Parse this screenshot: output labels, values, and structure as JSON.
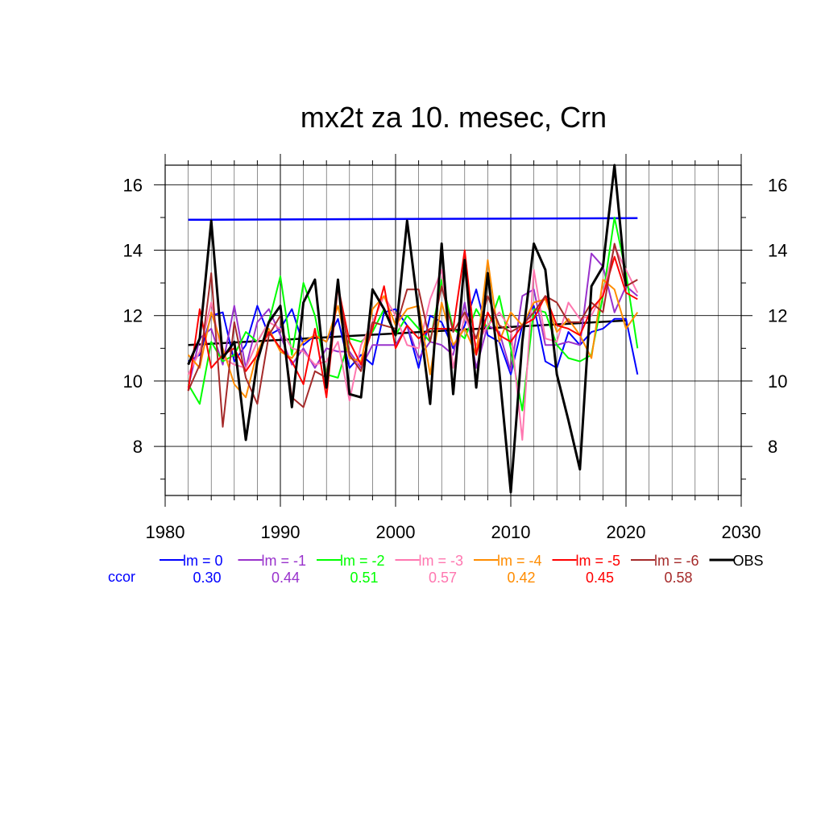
{
  "chart_data": {
    "type": "line",
    "title": "mx2t za 10. mesec, Crn",
    "xlabel": "",
    "ylabel": "",
    "xlim": [
      1980,
      2030
    ],
    "ylim": [
      6.5,
      16.6
    ],
    "x_ticks": [
      1980,
      1990,
      2000,
      2010,
      2020,
      2030
    ],
    "y_ticks": [
      8,
      10,
      12,
      14,
      16
    ],
    "grid": true,
    "legend_position": "bottom",
    "ccor_label": "ccor",
    "series": [
      {
        "name": "lm = 0",
        "color": "#0000ff",
        "ccor": "0.30",
        "x": [
          1982,
          1983,
          1984,
          1985,
          1986,
          1987,
          1988,
          1989,
          1990,
          1991,
          1992,
          1993,
          1994,
          1995,
          1996,
          1997,
          1998,
          1999,
          2000,
          2001,
          2002,
          2003,
          2004,
          2005,
          2006,
          2007,
          2008,
          2009,
          2010,
          2011,
          2012,
          2013,
          2014,
          2015,
          2016,
          2017,
          2018,
          2019,
          2020,
          2021
        ],
        "values": [
          10.6,
          10.8,
          12.0,
          12.1,
          10.6,
          11.1,
          12.3,
          11.4,
          11.6,
          12.2,
          11.1,
          11.4,
          11.2,
          11.9,
          10.4,
          10.8,
          10.5,
          12.1,
          12.2,
          11.7,
          10.4,
          12.0,
          11.8,
          11.0,
          11.7,
          12.8,
          11.4,
          11.2,
          10.2,
          11.7,
          12.3,
          10.6,
          10.4,
          11.5,
          11.1,
          11.5,
          11.6,
          11.9,
          11.9,
          10.2
        ]
      },
      {
        "name": "lm = -1",
        "color": "#9932cc",
        "ccor": "0.44",
        "x": [
          1982,
          1983,
          1984,
          1985,
          1986,
          1987,
          1988,
          1989,
          1990,
          1991,
          1992,
          1993,
          1994,
          1995,
          1996,
          1997,
          1998,
          1999,
          2000,
          2001,
          2002,
          2003,
          2004,
          2005,
          2006,
          2007,
          2008,
          2009,
          2010,
          2011,
          2012,
          2013,
          2014,
          2015,
          2016,
          2017,
          2018,
          2019,
          2020,
          2021
        ],
        "values": [
          9.8,
          11.3,
          11.6,
          10.5,
          12.3,
          10.4,
          11.8,
          12.2,
          11.4,
          10.5,
          11.0,
          10.4,
          11.0,
          10.9,
          10.9,
          10.4,
          11.1,
          11.1,
          11.1,
          11.7,
          10.7,
          11.2,
          11.1,
          10.8,
          12.4,
          10.4,
          11.7,
          11.5,
          10.3,
          12.6,
          12.8,
          11.1,
          11.1,
          11.2,
          11.1,
          13.9,
          13.5,
          12.1,
          12.9,
          12.6
        ]
      },
      {
        "name": "lm = -2",
        "color": "#00ff00",
        "ccor": "0.51",
        "x": [
          1982,
          1983,
          1984,
          1985,
          1986,
          1987,
          1988,
          1989,
          1990,
          1991,
          1992,
          1993,
          1994,
          1995,
          1996,
          1997,
          1998,
          1999,
          2000,
          2001,
          2002,
          2003,
          2004,
          2005,
          2006,
          2007,
          2008,
          2009,
          2010,
          2011,
          2012,
          2013,
          2014,
          2015,
          2016,
          2017,
          2018,
          2019,
          2020,
          2021
        ],
        "values": [
          9.9,
          9.3,
          11.2,
          10.6,
          10.8,
          11.5,
          11.2,
          11.8,
          13.2,
          10.8,
          13.0,
          12.0,
          10.2,
          10.1,
          11.3,
          11.2,
          11.5,
          12.2,
          11.4,
          12.0,
          11.6,
          11.2,
          13.1,
          11.6,
          11.3,
          12.2,
          11.6,
          12.6,
          11.0,
          9.1,
          12.2,
          12.1,
          11.1,
          10.7,
          10.6,
          10.8,
          12.6,
          15.0,
          13.3,
          11.0
        ]
      },
      {
        "name": "lm = -3",
        "color": "#ff77b0",
        "ccor": "0.57",
        "x": [
          1982,
          1983,
          1984,
          1985,
          1986,
          1987,
          1988,
          1989,
          1990,
          1991,
          1992,
          1993,
          1994,
          1995,
          1996,
          1997,
          1998,
          1999,
          2000,
          2001,
          2002,
          2003,
          2004,
          2005,
          2006,
          2007,
          2008,
          2009,
          2010,
          2011,
          2012,
          2013,
          2014,
          2015,
          2016,
          2017,
          2018,
          2019,
          2020,
          2021
        ],
        "values": [
          10.2,
          10.9,
          12.4,
          10.7,
          10.5,
          10.4,
          11.2,
          11.8,
          11.6,
          11.0,
          10.9,
          10.5,
          10.6,
          11.2,
          9.4,
          11.1,
          11.8,
          12.6,
          12.0,
          11.1,
          11.0,
          12.5,
          13.4,
          10.4,
          12.0,
          11.1,
          11.7,
          12.1,
          11.6,
          8.2,
          13.4,
          11.3,
          11.2,
          12.4,
          11.9,
          12.0,
          12.7,
          14.1,
          13.4,
          12.7
        ]
      },
      {
        "name": "lm = -4",
        "color": "#ff8c00",
        "ccor": "0.42",
        "x": [
          1982,
          1983,
          1984,
          1985,
          1986,
          1987,
          1988,
          1989,
          1990,
          1991,
          1992,
          1993,
          1994,
          1995,
          1996,
          1997,
          1998,
          1999,
          2000,
          2001,
          2002,
          2003,
          2004,
          2005,
          2006,
          2007,
          2008,
          2009,
          2010,
          2011,
          2012,
          2013,
          2014,
          2015,
          2016,
          2017,
          2018,
          2019,
          2020,
          2021
        ],
        "values": [
          10.8,
          10.4,
          12.1,
          11.0,
          9.9,
          9.5,
          10.9,
          11.6,
          10.9,
          10.7,
          11.2,
          11.4,
          11.2,
          12.3,
          10.7,
          10.6,
          12.2,
          12.6,
          11.7,
          12.2,
          12.3,
          10.2,
          12.4,
          11.1,
          11.6,
          10.8,
          13.7,
          11.2,
          12.1,
          11.7,
          12.4,
          12.5,
          11.5,
          11.9,
          11.4,
          10.7,
          13.1,
          12.8,
          11.6,
          12.1
        ]
      },
      {
        "name": "lm = -5",
        "color": "#ff0000",
        "ccor": "0.45",
        "x": [
          1982,
          1983,
          1984,
          1985,
          1986,
          1987,
          1988,
          1989,
          1990,
          1991,
          1992,
          1993,
          1994,
          1995,
          1996,
          1997,
          1998,
          1999,
          2000,
          2001,
          2002,
          2003,
          2004,
          2005,
          2006,
          2007,
          2008,
          2009,
          2010,
          2011,
          2012,
          2013,
          2014,
          2015,
          2016,
          2017,
          2018,
          2019,
          2020,
          2021
        ],
        "values": [
          9.7,
          12.2,
          10.4,
          10.8,
          11.0,
          10.3,
          10.8,
          11.5,
          11.0,
          10.6,
          9.9,
          11.6,
          9.5,
          12.9,
          11.2,
          10.5,
          11.6,
          12.9,
          11.0,
          11.7,
          11.3,
          11.6,
          11.6,
          11.6,
          14.0,
          10.8,
          12.1,
          11.4,
          11.2,
          11.7,
          11.9,
          12.6,
          11.7,
          11.6,
          11.4,
          12.2,
          12.6,
          13.8,
          12.7,
          12.5
        ]
      },
      {
        "name": "lm = -6",
        "color": "#a52a2a",
        "ccor": "0.58",
        "x": [
          1982,
          1983,
          1984,
          1985,
          1986,
          1987,
          1988,
          1989,
          1990,
          1991,
          1992,
          1993,
          1994,
          1995,
          1996,
          1997,
          1998,
          1999,
          2000,
          2001,
          2002,
          2003,
          2004,
          2005,
          2006,
          2007,
          2008,
          2009,
          2010,
          2011,
          2012,
          2013,
          2014,
          2015,
          2016,
          2017,
          2018,
          2019,
          2020,
          2021
        ],
        "values": [
          9.7,
          10.5,
          13.3,
          8.6,
          11.8,
          10.1,
          9.3,
          11.4,
          12.0,
          9.5,
          9.2,
          10.3,
          10.1,
          12.9,
          10.8,
          10.3,
          11.8,
          11.7,
          11.6,
          12.8,
          12.8,
          11.2,
          12.9,
          11.5,
          12.1,
          11.3,
          12.6,
          11.7,
          11.5,
          11.7,
          12.1,
          12.6,
          12.4,
          11.8,
          11.8,
          12.4,
          12.1,
          14.2,
          12.9,
          13.1
        ]
      },
      {
        "name": "OBS",
        "color": "#000000",
        "ccor": "",
        "x": [
          1982,
          1983,
          1984,
          1985,
          1986,
          1987,
          1988,
          1989,
          1990,
          1991,
          1992,
          1993,
          1994,
          1995,
          1996,
          1997,
          1998,
          1999,
          2000,
          2001,
          2002,
          2003,
          2004,
          2005,
          2006,
          2007,
          2008,
          2009,
          2010,
          2011,
          2012,
          2013,
          2014,
          2015,
          2016,
          2017,
          2018,
          2019,
          2020
        ],
        "values": [
          10.5,
          11.3,
          14.9,
          10.7,
          11.2,
          8.2,
          10.6,
          11.8,
          12.3,
          9.2,
          12.4,
          13.1,
          9.8,
          13.1,
          9.6,
          9.5,
          12.8,
          12.2,
          11.4,
          14.9,
          12.1,
          9.3,
          14.2,
          9.6,
          13.7,
          9.8,
          13.3,
          10.3,
          6.6,
          11.2,
          14.2,
          13.4,
          10.2,
          8.8,
          7.3,
          12.9,
          13.5,
          16.6,
          12.9
        ]
      }
    ],
    "trend_lines": [
      {
        "name": "lm = 0 trend",
        "color": "#0000ff",
        "x": [
          1982,
          2021
        ],
        "values": [
          14.93,
          14.98
        ]
      },
      {
        "name": "OBS trend",
        "color": "#000000",
        "x": [
          1982,
          2020
        ],
        "values": [
          11.1,
          11.85
        ]
      }
    ]
  }
}
